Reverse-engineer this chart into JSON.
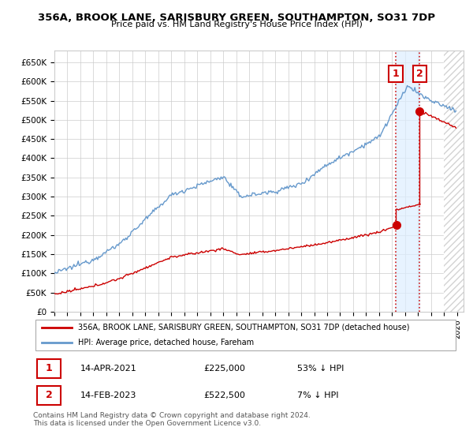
{
  "title": "356A, BROOK LANE, SARISBURY GREEN, SOUTHAMPTON, SO31 7DP",
  "subtitle": "Price paid vs. HM Land Registry's House Price Index (HPI)",
  "hpi_label": "HPI: Average price, detached house, Fareham",
  "property_label": "356A, BROOK LANE, SARISBURY GREEN, SOUTHAMPTON, SO31 7DP (detached house)",
  "hpi_color": "#6699cc",
  "property_color": "#cc0000",
  "annotation_box_color": "#cc0000",
  "transaction_1": {
    "label": "1",
    "date": "14-APR-2021",
    "price": "£225,000",
    "hpi": "53% ↓ HPI",
    "year": 2021.28
  },
  "transaction_2": {
    "label": "2",
    "date": "14-FEB-2023",
    "price": "£522,500",
    "hpi": "7% ↓ HPI",
    "year": 2023.12
  },
  "price_1": 225000,
  "price_2": 522500,
  "ylim": [
    0,
    680000
  ],
  "xlim_start": 1995,
  "xlim_end": 2026.5,
  "footer": "Contains HM Land Registry data © Crown copyright and database right 2024.\nThis data is licensed under the Open Government Licence v3.0.",
  "yticks": [
    0,
    50000,
    100000,
    150000,
    200000,
    250000,
    300000,
    350000,
    400000,
    450000,
    500000,
    550000,
    600000,
    650000
  ],
  "ytick_labels": [
    "£0",
    "£50K",
    "£100K",
    "£150K",
    "£200K",
    "£250K",
    "£300K",
    "£350K",
    "£400K",
    "£450K",
    "£500K",
    "£550K",
    "£600K",
    "£650K"
  ]
}
